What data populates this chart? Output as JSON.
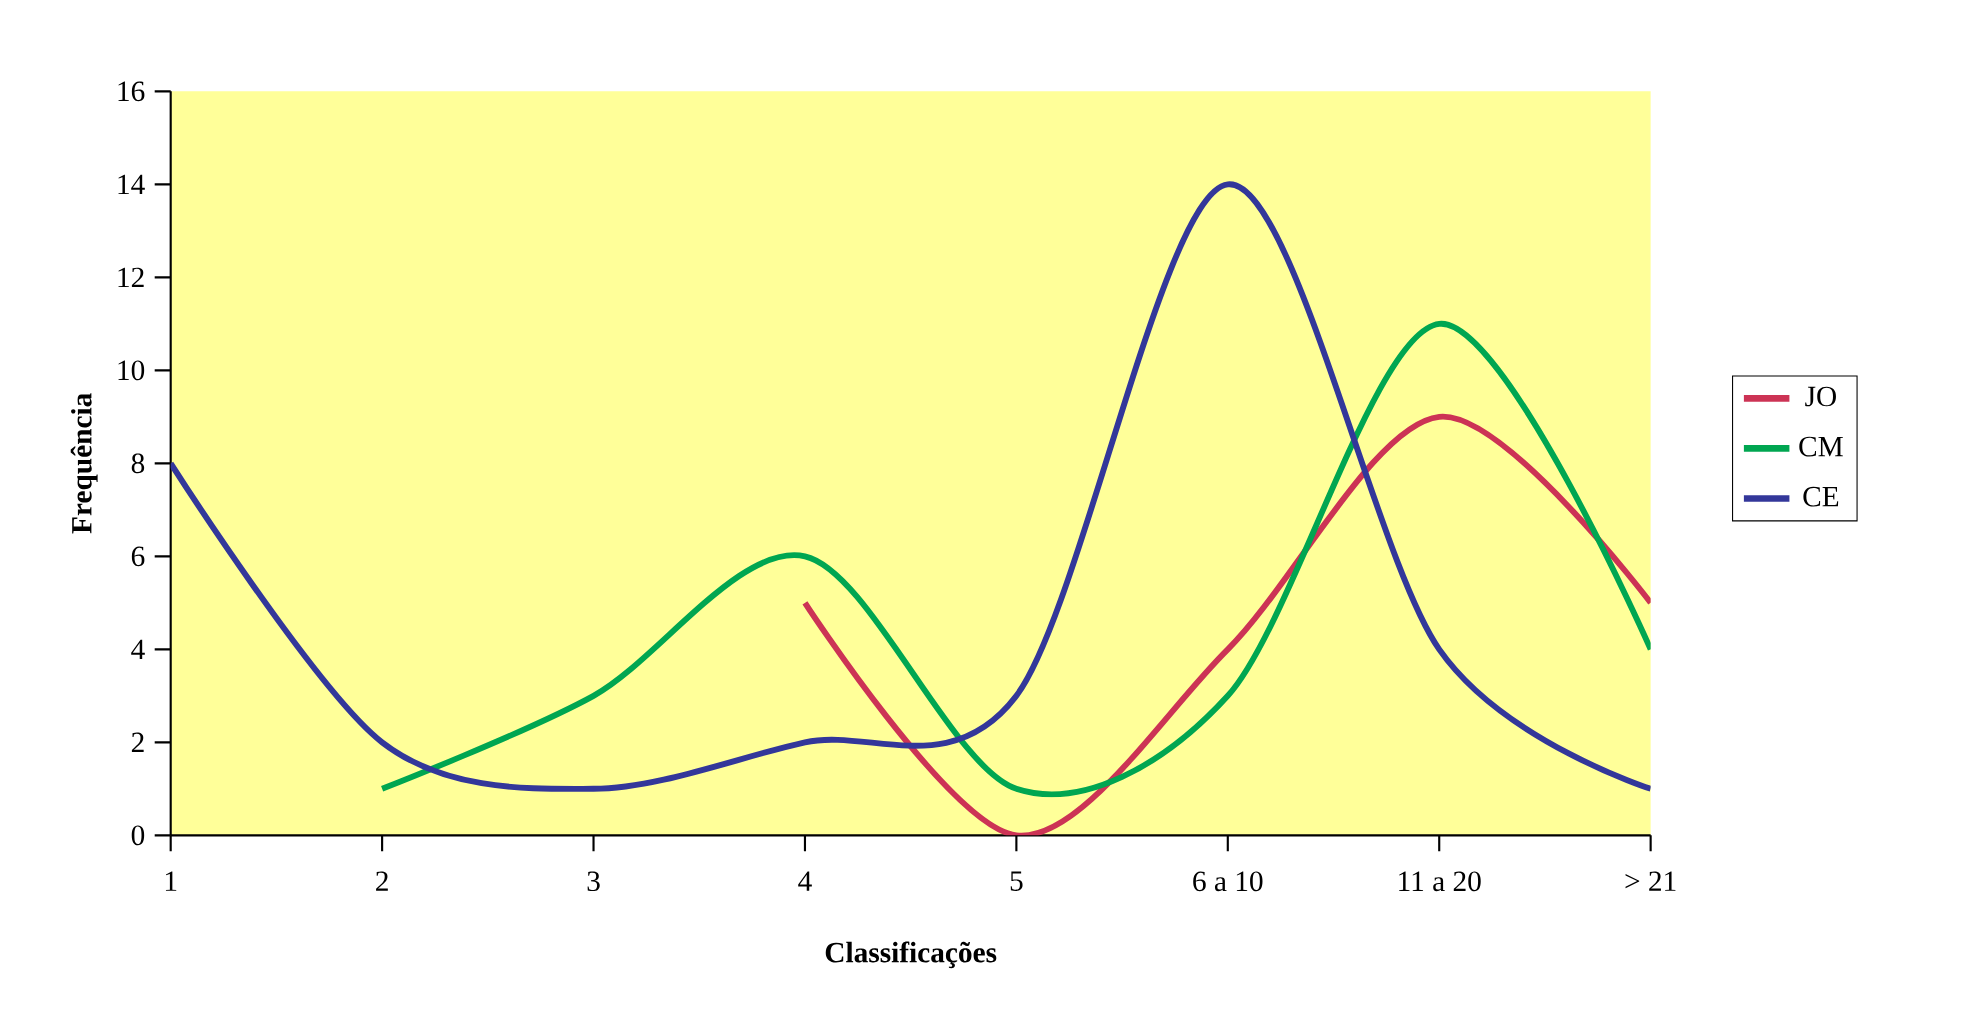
{
  "chart_data": {
    "type": "line",
    "xlabel": "Classificações",
    "ylabel": "Frequência",
    "categories": [
      "1",
      "2",
      "3",
      "4",
      "5",
      "6 a 10",
      "11 a 20",
      "> 21"
    ],
    "series": [
      {
        "name": "JO",
        "color": "#cc3355",
        "values": [
          null,
          null,
          null,
          5,
          0,
          4,
          9,
          5
        ]
      },
      {
        "name": "CM",
        "color": "#00a651",
        "values": [
          null,
          1,
          3,
          6,
          1,
          3,
          11,
          4
        ]
      },
      {
        "name": "CE",
        "color": "#33379a",
        "values": [
          8,
          2,
          1,
          2,
          3,
          14,
          4,
          1
        ]
      }
    ],
    "ylim": [
      0,
      16
    ],
    "yticks": [
      0,
      2,
      4,
      6,
      8,
      10,
      12,
      14,
      16
    ],
    "grid": false,
    "legend": "right",
    "marker": "none",
    "line_style": "solid"
  }
}
